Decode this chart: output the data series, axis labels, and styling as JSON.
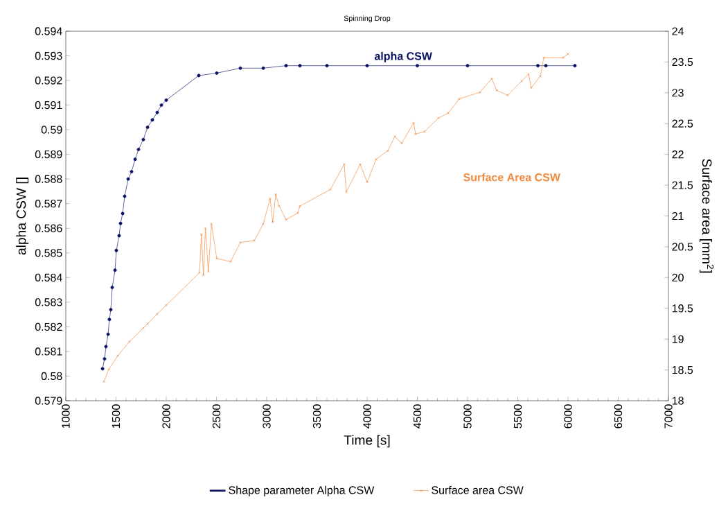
{
  "chart_data": {
    "type": "line",
    "title": "Spinning Drop",
    "xlabel": "Time [s]",
    "ylabel": "alpha CSW []",
    "y2label": "Surface area [mm$^{2}$]",
    "xlim": [
      1000,
      7000
    ],
    "xticks": [
      1000,
      1500,
      2000,
      2500,
      3000,
      3500,
      4000,
      4500,
      5000,
      5500,
      6000,
      6500,
      7000
    ],
    "ylim": [
      0.579,
      0.594
    ],
    "yticks": [
      0.579,
      0.58,
      0.581,
      0.582,
      0.583,
      0.584,
      0.585,
      0.586,
      0.587,
      0.588,
      0.589,
      0.59,
      0.591,
      0.592,
      0.593,
      0.594
    ],
    "y2lim": [
      18,
      24
    ],
    "y2ticks": [
      18,
      18.5,
      19,
      19.5,
      20,
      20.5,
      21,
      21.5,
      22,
      22.5,
      23,
      23.5,
      24
    ],
    "legend": "bottom",
    "grid": false,
    "annotations": [
      "alpha CSW",
      "Surface Area CSW"
    ],
    "series": [
      {
        "name": "Shape parameter Alpha CSW",
        "color": "#0d1466",
        "marker": "circle",
        "x": [
          1366,
          1386,
          1400,
          1421,
          1434,
          1448,
          1462,
          1490,
          1503,
          1531,
          1545,
          1566,
          1586,
          1621,
          1655,
          1690,
          1724,
          1772,
          1814,
          1862,
          1910,
          1952,
          2000,
          2324,
          2503,
          2738,
          2966,
          3193,
          3331,
          3600,
          4000,
          4500,
          5000,
          5700,
          5780,
          6069
        ],
        "values": [
          0.5803,
          0.5807,
          0.5812,
          0.5817,
          0.5823,
          0.5827,
          0.5836,
          0.5843,
          0.5851,
          0.5857,
          0.5862,
          0.5866,
          0.5873,
          0.588,
          0.5883,
          0.5888,
          0.5892,
          0.5896,
          0.5901,
          0.5904,
          0.5907,
          0.591,
          0.5912,
          0.5922,
          0.5923,
          0.5925,
          0.5925,
          0.5926,
          0.5926,
          0.5926,
          0.5926,
          0.5926,
          0.5926,
          0.5926,
          0.5926,
          0.5926
        ]
      },
      {
        "name": "Surface area CSW",
        "color": "#f08a3c",
        "marker": "cross",
        "axis": "y2",
        "x": [
          1379,
          1428,
          1517,
          1634,
          1772,
          1814,
          1910,
          2000,
          2331,
          2350,
          2370,
          2390,
          2420,
          2450,
          2503,
          2641,
          2738,
          2876,
          2966,
          3034,
          3060,
          3090,
          3124,
          3193,
          3310,
          3331,
          3634,
          3772,
          3793,
          3931,
          4000,
          4090,
          4207,
          4276,
          4345,
          4462,
          4483,
          4572,
          4710,
          4807,
          4917,
          5124,
          5241,
          5290,
          5400,
          5538,
          5607,
          5634,
          5724,
          5759,
          5952,
          6000
        ],
        "values": [
          18.31,
          18.51,
          18.73,
          18.96,
          19.18,
          19.25,
          19.41,
          19.55,
          20.08,
          20.7,
          20.04,
          20.8,
          20.1,
          20.87,
          20.31,
          20.26,
          20.57,
          20.6,
          20.87,
          21.28,
          20.9,
          21.35,
          21.16,
          20.94,
          21.05,
          21.16,
          21.43,
          21.84,
          21.39,
          21.84,
          21.55,
          21.92,
          22.06,
          22.29,
          22.18,
          22.51,
          22.33,
          22.37,
          22.59,
          22.67,
          22.9,
          23.01,
          23.23,
          23.04,
          22.96,
          23.19,
          23.3,
          23.08,
          23.27,
          23.57,
          23.57,
          23.63
        ]
      }
    ]
  }
}
